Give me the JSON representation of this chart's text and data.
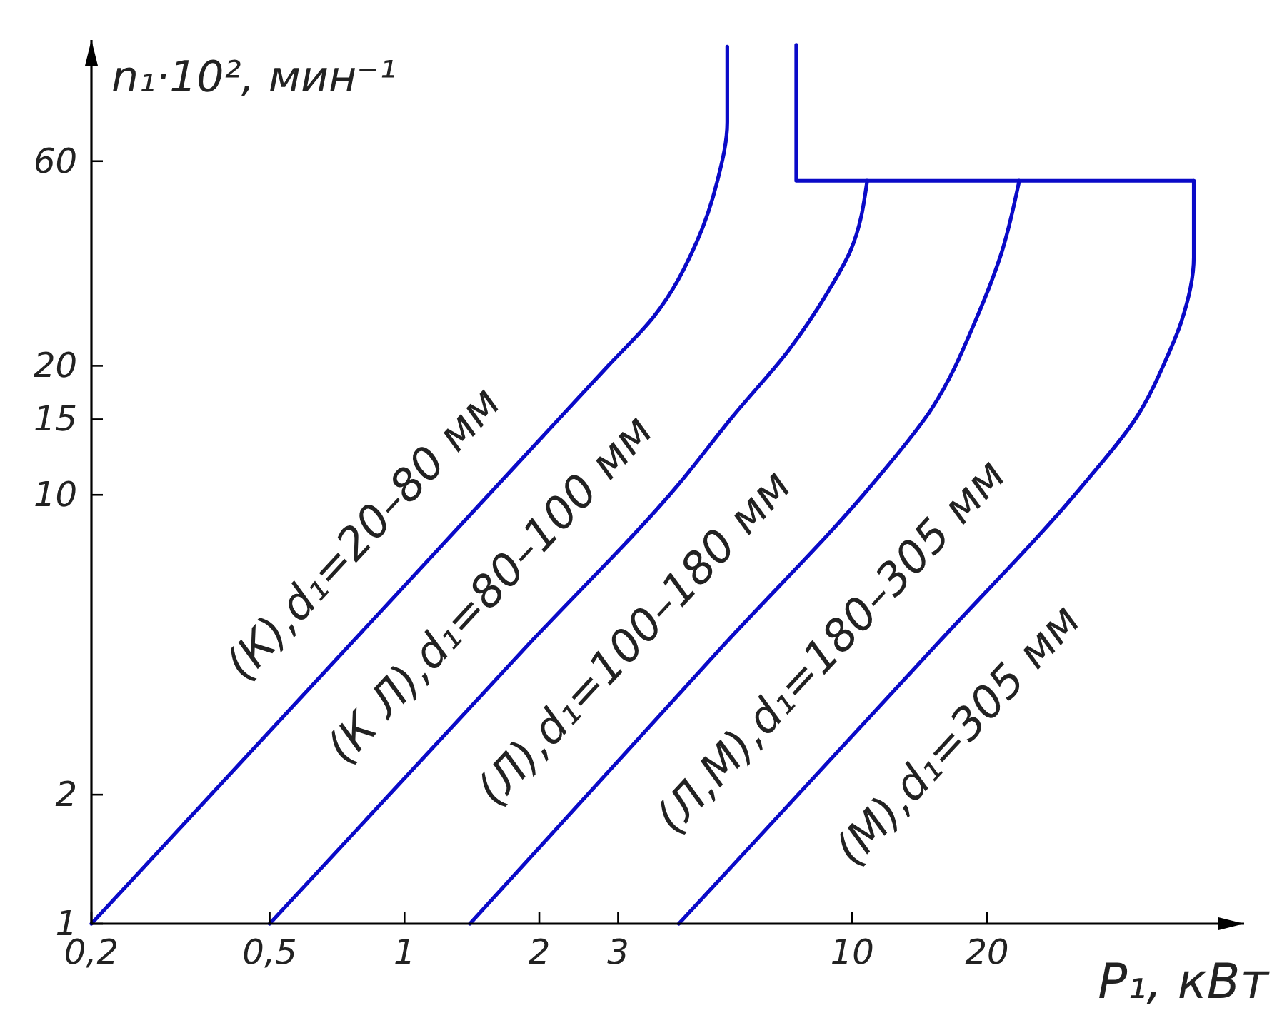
{
  "chart_data": {
    "type": "line",
    "xlabel": "P₁, кВт",
    "ylabel": "n₁·10², мин⁻¹",
    "log": "xy",
    "xlim": [
      0.2,
      75
    ],
    "ylim": [
      1,
      115
    ],
    "xticks": [
      {
        "value": 0.2,
        "label": "0,2"
      },
      {
        "value": 0.5,
        "label": "0,5"
      },
      1,
      2,
      3,
      10,
      20
    ],
    "yticks": [
      1,
      2,
      10,
      15,
      20,
      60
    ],
    "series": [
      {
        "color": "#0a0ac8",
        "x": [
          0.2,
          0.98,
          2.85,
          3.6,
          4.5,
          5.0,
          5.26,
          5.26
        ],
        "values": [
          1,
          6,
          20,
          26,
          39,
          54,
          74,
          111
        ]
      },
      {
        "color": "#0a0ac8",
        "x": [
          0.5,
          1.9,
          4.1,
          5.4,
          7.25,
          8.8,
          9.9,
          10.8
        ],
        "values": [
          1,
          4.5,
          10.6,
          15.2,
          21.9,
          29.6,
          37,
          54
        ]
      },
      {
        "color": "#0a0ac8",
        "x": [
          1.4,
          5.2,
          11.1,
          15,
          19.0,
          21.6,
          23.6
        ],
        "values": [
          1,
          4.5,
          10.6,
          15.8,
          26,
          37,
          54
        ]
      },
      {
        "color": "#0a0ac8",
        "x": [
          4.1,
          15.5,
          32.9,
          43.2,
          50.4,
          54.2,
          57.9,
          57.9
        ],
        "values": [
          1,
          4.5,
          10.6,
          15.2,
          20.9,
          25.2,
          35.8,
          54
        ]
      },
      {
        "color": "#0a0ac8",
        "x": [
          7.5,
          7.5,
          57.9
        ],
        "values": [
          112,
          54,
          54
        ]
      }
    ],
    "annotations": [
      "(К),d₁=20–80 мм",
      "(К Л),d₁=80–100 мм",
      "(Л),d₁=100–180 мм",
      "(Л,М),d₁=180–305 мм",
      "(М),d₁=305 мм"
    ]
  }
}
